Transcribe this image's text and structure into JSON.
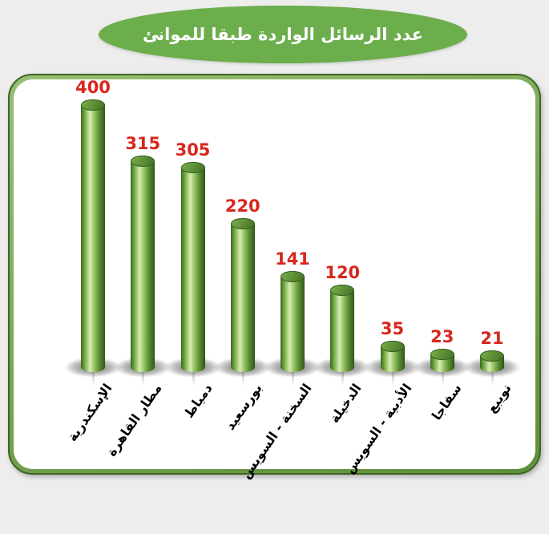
{
  "banner": {
    "title": "عدد الرسائل الواردة طبقا للموانئ",
    "fill_color": "#6cae4c",
    "text_color": "#ffffff"
  },
  "chart_data": {
    "type": "bar",
    "style": "3d-vertical-cylinders",
    "title": "عدد الرسائل الواردة طبقا للموانئ",
    "categories": [
      "الإسكندرية",
      "مطار القاهرة",
      "دمياط",
      "بورسعيد",
      "السخنة - السويس",
      "الدخيلة",
      "الأدبية - السويس",
      "سفاجا",
      "نويبع"
    ],
    "values": [
      400,
      315,
      305,
      220,
      141,
      120,
      35,
      23,
      21
    ],
    "xlabel": "",
    "ylabel": "",
    "ylim": [
      0,
      400
    ],
    "grid": false,
    "legend": "none",
    "value_labels_position": "above-bar",
    "value_label_color": "#d8261d",
    "bar_cap_color": "#4a7929",
    "bar_highlight_color": "#d9ecb4",
    "bar_edge_color": "#2f5718",
    "category_label_rotation_deg": -55
  }
}
